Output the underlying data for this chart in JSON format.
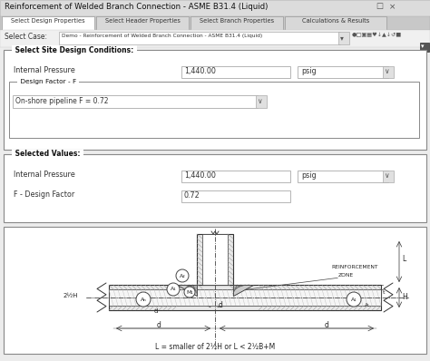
{
  "title": "Reinforcement of Welded Branch Connection - ASME B31.4 (Liquid)",
  "tab1": "Select Design Properties",
  "tab2": "Select Header Properties",
  "tab3": "Select Branch Properties",
  "tab4": "Calculations & Results",
  "select_case_label": "Select Case:",
  "select_case_value": "Demo - Reinforcement of Welded Branch Connection - ASME B31.4 (Liquid)",
  "section1_title": "Select Site Design Conditions:",
  "internal_pressure_label": "Internal Pressure",
  "internal_pressure_value": "1,440.00",
  "pressure_unit": "psig",
  "design_factor_title": "Design Factor - F",
  "design_factor_value": "On-shore pipeline F = 0.72",
  "section2_title": "Selected Values:",
  "sel_ip_label": "Internal Pressure",
  "sel_ip_value": "1,440.00",
  "sel_unit": "psig",
  "sel_df_label": "F - Design Factor",
  "sel_df_value": "0.72",
  "formula": "L = smaller of 2½H or L < 2½B+M",
  "reinf_zone": "REINFORCEMENT\nZONE",
  "bg_color": "#ececec",
  "title_bg": "#e0e0e0",
  "white": "#ffffff",
  "border": "#888888",
  "dark": "#333333",
  "tab_active": "#ffffff",
  "tab_inactive": "#d8d8d8"
}
